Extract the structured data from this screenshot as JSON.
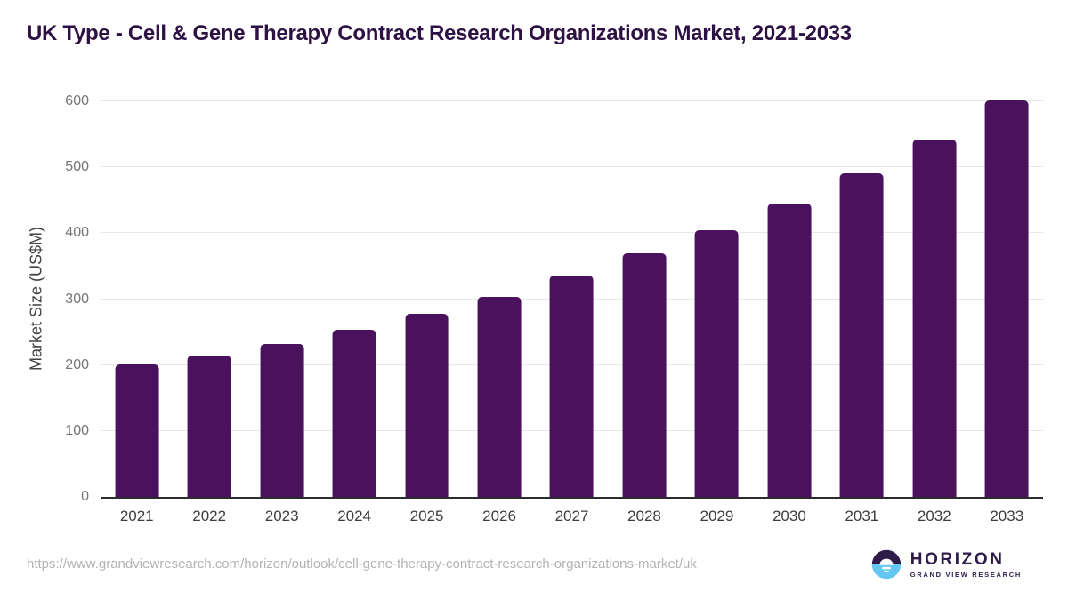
{
  "title": "UK Type - Cell & Gene Therapy Contract Research Organizations Market, 2021-2033",
  "chart_data": {
    "type": "bar",
    "title": "UK Type - Cell & Gene Therapy Contract Research Organizations Market, 2021-2033",
    "categories": [
      "2021",
      "2022",
      "2023",
      "2024",
      "2025",
      "2026",
      "2027",
      "2028",
      "2029",
      "2030",
      "2031",
      "2032",
      "2033"
    ],
    "values": [
      201,
      215,
      232,
      254,
      278,
      304,
      336,
      369,
      405,
      445,
      491,
      542,
      602
    ],
    "xlabel": "",
    "ylabel": "Market Size (US$M)",
    "ylim": [
      0,
      600
    ],
    "yticks": [
      0,
      100,
      200,
      300,
      400,
      500,
      600
    ],
    "grid": true,
    "legend_position": "none",
    "bar_color": "#4a115c"
  },
  "footer": {
    "source_url": "https://www.grandviewresearch.com/horizon/outlook/cell-gene-therapy-contract-research-organizations-market/uk",
    "logo_title": "HORIZON",
    "logo_subtitle": "GRAND VIEW RESEARCH"
  },
  "colors": {
    "bar": "#4a115c",
    "title_text": "#2e1144",
    "axis_line": "#2b2b2b",
    "gridline": "#e8e8e8",
    "ytick_text": "#757575",
    "xtick_text": "#3d3d3d",
    "ylabel_text": "#424242",
    "url_text": "#b3b3b3",
    "logo_dark": "#2d1b4a",
    "logo_blue": "#64c7f2",
    "logo_sun": "#ffffff"
  }
}
